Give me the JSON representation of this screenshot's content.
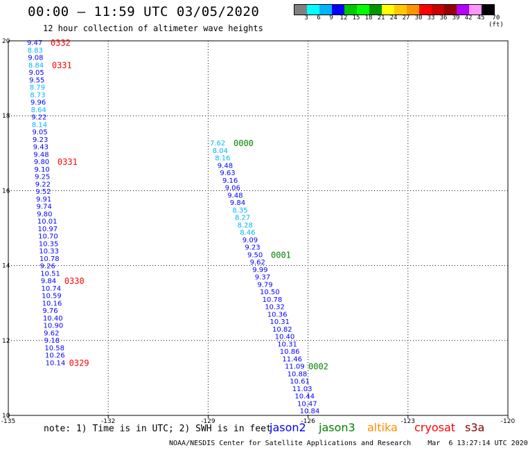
{
  "header": {
    "title": "00:00 – 11:59 UTC 03/05/2020",
    "subtitle": "12 hour collection of altimeter wave heights"
  },
  "colorbar": {
    "colors": [
      "#808080",
      "#00ffff",
      "#00b4ff",
      "#0000ff",
      "#00c800",
      "#00ff00",
      "#009600",
      "#ffff00",
      "#ffc800",
      "#ff9600",
      "#ff0000",
      "#c80000",
      "#960000",
      "#b400ff",
      "#ff96ff",
      "#000000"
    ],
    "labels": [
      "3",
      "6",
      "9",
      "12",
      "15",
      "18",
      "21",
      "24",
      "27",
      "30",
      "33",
      "36",
      "39",
      "42",
      "45",
      "70 (ft)"
    ]
  },
  "map": {
    "lon_range": [
      -135,
      -120
    ],
    "lat_range": [
      10,
      20
    ],
    "x_ticks": [
      "-135",
      "-132",
      "-129",
      "-126",
      "-123",
      "-120"
    ],
    "y_ticks": [
      "20",
      "18",
      "16",
      "14",
      "12",
      "10"
    ],
    "tracks": [
      {
        "satellite": "cryosat",
        "values": [
          "9.47",
          "8.83",
          "9.08",
          "8.84",
          "9.05",
          "9.55",
          "8.79",
          "8.73",
          "9.96",
          "8.64",
          "9.22",
          "8.14",
          "9.05",
          "9.23",
          "9.43",
          "9.48",
          "9.80",
          "9.10",
          "9.25",
          "9.22",
          "9.52",
          "9.91",
          "9.74",
          "9.80",
          "10.01",
          "10.97",
          "10.70",
          "10.35",
          "10.33",
          "10.78",
          "9.26",
          "10.51",
          "9.84",
          "10.74",
          "10.59",
          "10.16",
          "9.76",
          "10.40",
          "10.90",
          "9.62",
          "9.18",
          "10.58",
          "10.26",
          "10.14"
        ],
        "colors": [
          "#0000ff",
          "#00b4ff",
          "#0000ff",
          "#00b4ff",
          "#0000ff",
          "#0000ff",
          "#00b4ff",
          "#00b4ff",
          "#0000ff",
          "#00b4ff",
          "#0000ff",
          "#00b4ff",
          "#0000ff",
          "#0000ff",
          "#0000ff",
          "#0000ff",
          "#0000ff",
          "#0000ff",
          "#0000ff",
          "#0000ff",
          "#0000ff",
          "#0000ff",
          "#0000ff",
          "#0000ff",
          "#0000ff",
          "#0000ff",
          "#0000ff",
          "#0000ff",
          "#0000ff",
          "#0000ff",
          "#0000ff",
          "#0000ff",
          "#0000ff",
          "#0000ff",
          "#0000ff",
          "#0000ff",
          "#0000ff",
          "#0000ff",
          "#0000ff",
          "#0000ff",
          "#0000ff",
          "#0000ff",
          "#0000ff",
          "#0000ff"
        ],
        "time_labels": [
          {
            "text": "0332",
            "index": 0
          },
          {
            "text": "0331",
            "index": 3
          },
          {
            "text": "0331",
            "index": 16
          },
          {
            "text": "0330",
            "index": 32
          },
          {
            "text": "0329",
            "index": 43
          }
        ],
        "time_color": "#ff0000"
      },
      {
        "satellite": "jason3",
        "values": [
          "7.62",
          "8.04",
          "8.16",
          "9.48",
          "9.63",
          "9.16",
          "9.06",
          "9.48",
          "9.84",
          "8.35",
          "8.27",
          "8.28",
          "8.46",
          "9.09",
          "9.23",
          "9.50",
          "9.62",
          "9.99",
          "9.37",
          "9.79",
          "10.50",
          "10.78",
          "10.32",
          "10.36",
          "10.31",
          "10.82",
          "10.40",
          "10.31",
          "10.86",
          "11.46",
          "11.09",
          "10.88",
          "10.61",
          "11.03",
          "10.44",
          "10.47",
          "10.84"
        ],
        "colors": [
          "#00b4ff",
          "#00b4ff",
          "#00b4ff",
          "#0000ff",
          "#0000ff",
          "#0000ff",
          "#0000ff",
          "#0000ff",
          "#0000ff",
          "#00b4ff",
          "#00b4ff",
          "#00b4ff",
          "#00b4ff",
          "#0000ff",
          "#0000ff",
          "#0000ff",
          "#0000ff",
          "#0000ff",
          "#0000ff",
          "#0000ff",
          "#0000ff",
          "#0000ff",
          "#0000ff",
          "#0000ff",
          "#0000ff",
          "#0000ff",
          "#0000ff",
          "#0000ff",
          "#0000ff",
          "#0000ff",
          "#0000ff",
          "#0000ff",
          "#0000ff",
          "#0000ff",
          "#0000ff",
          "#0000ff",
          "#0000ff"
        ],
        "time_labels": [
          {
            "text": "0000",
            "index": 0
          },
          {
            "text": "0001",
            "index": 15
          },
          {
            "text": "0002",
            "index": 30
          }
        ],
        "time_color": "#008200"
      }
    ]
  },
  "footer": {
    "note": "note: 1) Time is in UTC; 2) SWH is in feet",
    "legend": [
      {
        "name": "jason2",
        "color": "#0000ff"
      },
      {
        "name": "jason3",
        "color": "#008200"
      },
      {
        "name": "altika",
        "color": "#ff8c00"
      },
      {
        "name": "cryosat",
        "color": "#ff0000"
      },
      {
        "name": "s3a",
        "color": "#800000"
      }
    ],
    "credit": "NOAA/NESDIS Center for Satellite Applications and Research    Mar  6 13:27:14 UTC 2020"
  }
}
